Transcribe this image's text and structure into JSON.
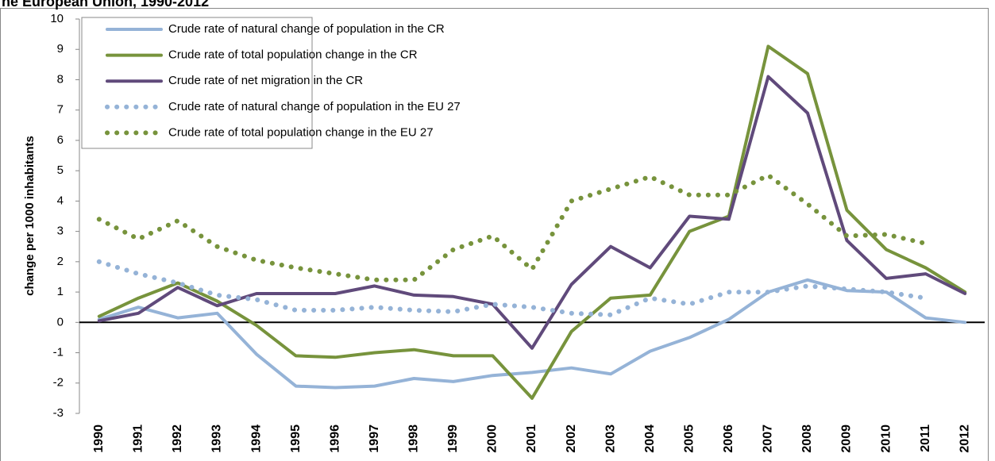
{
  "chart_data": {
    "type": "line",
    "title": "he European Union, 1990-2012",
    "y_label": "change per 1000 inhabitants",
    "categories": [
      "1990",
      "1991",
      "1992",
      "1993",
      "1994",
      "1995",
      "1996",
      "1997",
      "1998",
      "1999",
      "2000",
      "2001",
      "2002",
      "2003",
      "2004",
      "2005",
      "2006",
      "2007",
      "2008",
      "2009",
      "2010",
      "2011",
      "2012"
    ],
    "ylim": [
      -3,
      10
    ],
    "yticks": [
      -3,
      -2,
      -1,
      0,
      1,
      2,
      3,
      4,
      5,
      6,
      7,
      8,
      9,
      10
    ],
    "grid": false,
    "legend": "upper-left",
    "series": [
      {
        "name": "Crude rate of natural change of population in the CR",
        "color": "#95b3d7",
        "style": "solid",
        "values": [
          0.1,
          0.5,
          0.15,
          0.3,
          -1.05,
          -2.1,
          -2.15,
          -2.1,
          -1.85,
          -1.95,
          -1.75,
          -1.65,
          -1.5,
          -1.7,
          -0.95,
          -0.5,
          0.1,
          1.0,
          1.4,
          1.05,
          1.0,
          0.15,
          0.0
        ]
      },
      {
        "name": "Crude rate of total population change in the CR",
        "color": "#77933c",
        "style": "solid",
        "values": [
          0.2,
          0.8,
          1.3,
          0.7,
          -0.1,
          -1.1,
          -1.15,
          -1.0,
          -0.9,
          -1.1,
          -1.1,
          -2.5,
          -0.3,
          0.8,
          0.9,
          3.0,
          3.5,
          9.1,
          8.2,
          3.7,
          2.4,
          1.8,
          1.0
        ]
      },
      {
        "name": "Crude rate of net migration in the CR",
        "color": "#604a7b",
        "style": "solid",
        "values": [
          0.05,
          0.3,
          1.15,
          0.55,
          0.95,
          0.95,
          0.95,
          1.2,
          0.9,
          0.85,
          0.6,
          -0.85,
          1.25,
          2.5,
          1.8,
          3.5,
          3.4,
          8.1,
          6.9,
          2.7,
          1.45,
          1.6,
          0.95
        ]
      },
      {
        "name": "Crude rate of natural change of population in the EU 27",
        "color": "#95b3d7",
        "style": "dotted",
        "values": [
          2.0,
          1.6,
          1.3,
          0.9,
          0.75,
          0.4,
          0.4,
          0.5,
          0.4,
          0.35,
          0.6,
          0.5,
          0.3,
          0.25,
          0.8,
          0.6,
          1.0,
          1.0,
          1.2,
          1.1,
          1.0,
          0.8,
          null
        ]
      },
      {
        "name": "Crude rate of total population change in the EU 27",
        "color": "#77933c",
        "style": "dotted",
        "values": [
          3.4,
          2.75,
          3.35,
          2.5,
          2.05,
          1.8,
          1.6,
          1.4,
          1.4,
          2.4,
          2.85,
          1.75,
          4.0,
          4.4,
          4.8,
          4.2,
          4.2,
          4.85,
          3.9,
          2.85,
          2.9,
          2.6,
          null
        ]
      }
    ]
  }
}
